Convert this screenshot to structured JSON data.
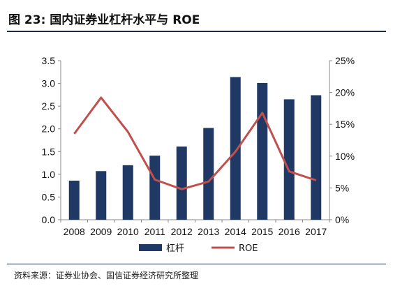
{
  "title": "图 23:  国内证券业杠杆水平与 ROE",
  "source": "资料来源：证券业协会、国信证券经济研究所整理",
  "colors": {
    "bar": "#1f3864",
    "line": "#c0504d",
    "axis": "#888888",
    "rule": "#1f2a44"
  },
  "chart_data": {
    "type": "bar",
    "categories": [
      "2008",
      "2009",
      "2010",
      "2011",
      "2012",
      "2013",
      "2014",
      "2015",
      "2016",
      "2017"
    ],
    "series": [
      {
        "name": "杠杆",
        "type": "bar",
        "axis": "left",
        "values": [
          0.86,
          1.07,
          1.2,
          1.41,
          1.61,
          2.02,
          3.14,
          3.01,
          2.65,
          2.74
        ]
      },
      {
        "name": "ROE",
        "type": "line",
        "axis": "right",
        "values": [
          13.5,
          19.2,
          13.8,
          6.3,
          4.8,
          6.0,
          10.7,
          16.8,
          7.6,
          6.2
        ]
      }
    ],
    "y_left": {
      "min": 0,
      "max": 3.5,
      "ticks": [
        "0.0",
        "0.5",
        "1.0",
        "1.5",
        "2.0",
        "2.5",
        "3.0",
        "3.5"
      ]
    },
    "y_right": {
      "min": 0,
      "max": 25,
      "ticks": [
        "0%",
        "5%",
        "10%",
        "15%",
        "20%",
        "25%"
      ]
    },
    "legend": [
      {
        "label": "杠杆",
        "kind": "bar"
      },
      {
        "label": "ROE",
        "kind": "line"
      }
    ],
    "legend_position": "bottom",
    "grid": false
  }
}
